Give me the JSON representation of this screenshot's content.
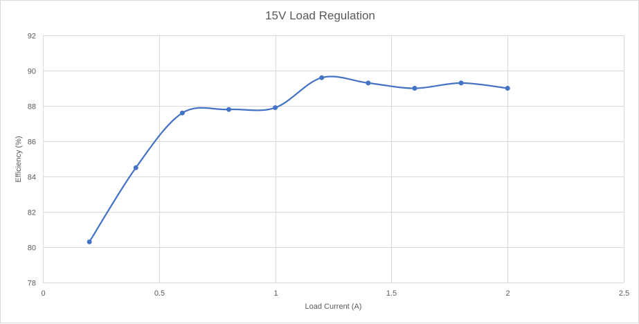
{
  "chart": {
    "title": "15V Load Regulation",
    "xlabel": "Load Current (A)",
    "ylabel": "Efficiency (%)"
  },
  "colors": {
    "series": "#4472c4",
    "grid": "#d9d9d9",
    "text": "#595959",
    "border": "#d9d9d9"
  },
  "chart_data": {
    "type": "line",
    "title": "15V Load Regulation",
    "xlabel": "Load Current (A)",
    "ylabel": "Efficiency (%)",
    "xlim": [
      0,
      2.5
    ],
    "ylim": [
      78,
      92
    ],
    "x_ticks": [
      0,
      0.5,
      1,
      1.5,
      2,
      2.5
    ],
    "x_tick_labels": [
      "0",
      "0.5",
      "1",
      "1.5",
      "2",
      "2.5"
    ],
    "y_ticks": [
      78,
      80,
      82,
      84,
      86,
      88,
      90,
      92
    ],
    "y_tick_labels": [
      "78",
      "80",
      "82",
      "84",
      "86",
      "88",
      "90",
      "92"
    ],
    "grid": true,
    "smooth": true,
    "markers": true,
    "legend": "none",
    "series": [
      {
        "name": "Efficiency",
        "x": [
          0.2,
          0.4,
          0.6,
          0.8,
          1.0,
          1.2,
          1.4,
          1.6,
          1.8,
          2.0
        ],
        "values": [
          80.3,
          84.5,
          87.6,
          87.8,
          87.9,
          89.6,
          89.3,
          89.0,
          89.3,
          89.0
        ]
      }
    ]
  }
}
